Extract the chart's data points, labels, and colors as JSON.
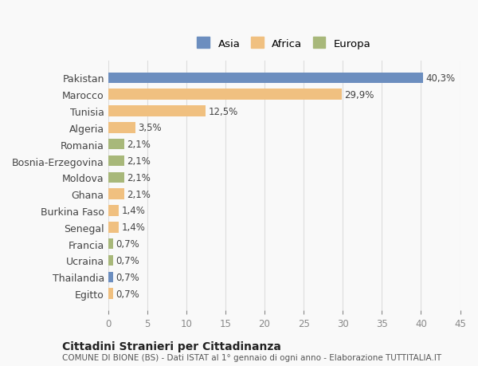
{
  "categories": [
    "Pakistan",
    "Marocco",
    "Tunisia",
    "Algeria",
    "Romania",
    "Bosnia-Erzegovina",
    "Moldova",
    "Ghana",
    "Burkina Faso",
    "Senegal",
    "Francia",
    "Ucraina",
    "Thailandia",
    "Egitto"
  ],
  "values": [
    40.3,
    29.9,
    12.5,
    3.5,
    2.1,
    2.1,
    2.1,
    2.1,
    1.4,
    1.4,
    0.7,
    0.7,
    0.7,
    0.7
  ],
  "labels": [
    "40,3%",
    "29,9%",
    "12,5%",
    "3,5%",
    "2,1%",
    "2,1%",
    "2,1%",
    "2,1%",
    "1,4%",
    "1,4%",
    "0,7%",
    "0,7%",
    "0,7%",
    "0,7%"
  ],
  "continents": [
    "Asia",
    "Africa",
    "Africa",
    "Africa",
    "Europa",
    "Europa",
    "Europa",
    "Africa",
    "Africa",
    "Africa",
    "Europa",
    "Europa",
    "Asia",
    "Africa"
  ],
  "colors": {
    "Asia": "#6c8ebf",
    "Africa": "#f0c080",
    "Europa": "#a8b87a"
  },
  "legend_order": [
    "Asia",
    "Africa",
    "Europa"
  ],
  "xlim": [
    0,
    45
  ],
  "xticks": [
    0,
    5,
    10,
    15,
    20,
    25,
    30,
    35,
    40,
    45
  ],
  "title": "Cittadini Stranieri per Cittadinanza",
  "subtitle": "COMUNE DI BIONE (BS) - Dati ISTAT al 1° gennaio di ogni anno - Elaborazione TUTTITALIA.IT",
  "background_color": "#f9f9f9",
  "bar_background": "#ffffff",
  "grid_color": "#dddddd"
}
